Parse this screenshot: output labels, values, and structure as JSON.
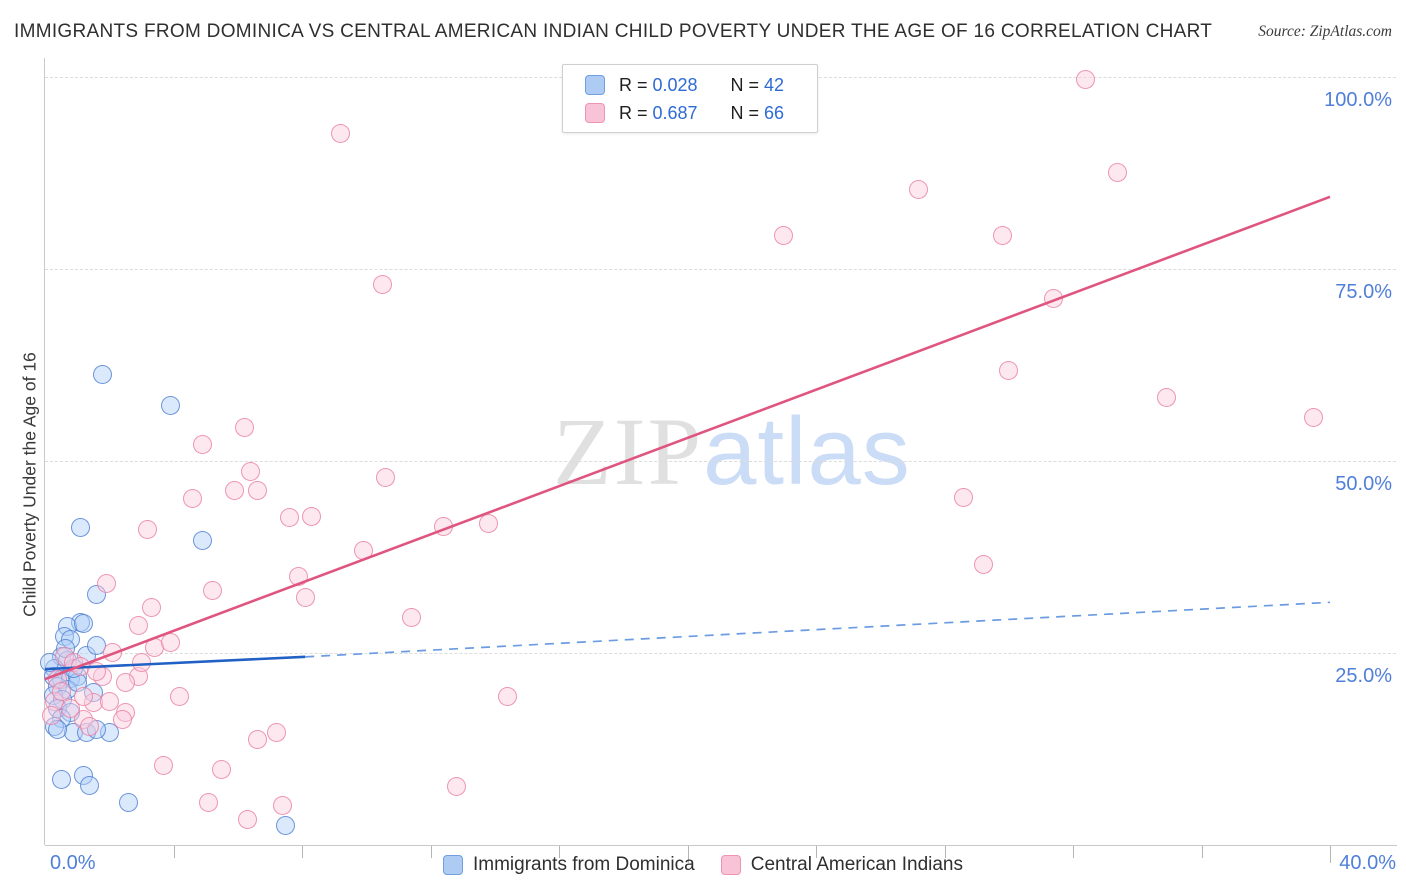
{
  "header": {
    "title": "IMMIGRANTS FROM DOMINICA VS CENTRAL AMERICAN INDIAN CHILD POVERTY UNDER THE AGE OF 16 CORRELATION CHART",
    "source": "Source: ZipAtlas.com"
  },
  "y_axis": {
    "title": "Child Poverty Under the Age of 16"
  },
  "x_axis": {
    "min_label": "0.0%",
    "max_label": "40.0%"
  },
  "watermark": {
    "part1": "ZIP",
    "part2": "atlas"
  },
  "legend_box": {
    "rows": [
      {
        "series": "Immigrants from Dominica",
        "r_label": "R = ",
        "r_value": "0.028",
        "n_label": "N = ",
        "n_value": "42",
        "color": "blue"
      },
      {
        "series": "Central American Indians",
        "r_label": "R = ",
        "r_value": "0.687",
        "n_label": "N = ",
        "n_value": "66",
        "color": "pink"
      }
    ]
  },
  "bottom_legend": [
    {
      "label": "Immigrants from Dominica",
      "color": "blue"
    },
    {
      "label": "Central American Indians",
      "color": "pink"
    }
  ],
  "colors": {
    "blue_dot_fill": "#b0cff8",
    "blue_dot_stroke": "#4678cd",
    "pink_dot_fill": "#faccde",
    "pink_dot_stroke": "#e8789e",
    "blue_trend": "#2160c4",
    "blue_trend_dashed": "#6b9be0",
    "pink_trend": "#e0557f",
    "gridline": "#dcdcdc",
    "axis_tick_label": "#4f7fd9",
    "title_text": "#2f2f2f"
  },
  "chart_data": {
    "type": "scatter",
    "title": "Immigrants from Dominica vs Central American Indian Child Poverty under the age of 16",
    "xlabel": "Immigrants from Dominica (%)",
    "ylabel": "Child Poverty Under the Age of 16",
    "xlim": [
      0,
      40
    ],
    "ylim": [
      0,
      100
    ],
    "x_tick_step": 4,
    "grid": "horizontal-dashed",
    "legend_position": "top-center",
    "y_gridlines": [
      {
        "value": 100,
        "label": "100.0%"
      },
      {
        "value": 75,
        "label": "75.0%"
      },
      {
        "value": 50,
        "label": "50.0%"
      },
      {
        "value": 25,
        "label": "25.0%"
      }
    ],
    "series": [
      {
        "name": "Immigrants from Dominica",
        "color_key": "blue",
        "R": 0.028,
        "N": 42,
        "points": [
          [
            1.8,
            61.2
          ],
          [
            3.9,
            57.2
          ],
          [
            1.1,
            41.3
          ],
          [
            4.9,
            39.6
          ],
          [
            1.6,
            32.6
          ],
          [
            1.1,
            29.0
          ],
          [
            0.7,
            28.5
          ],
          [
            0.6,
            27.1
          ],
          [
            0.8,
            26.8
          ],
          [
            0.5,
            24.5
          ],
          [
            0.7,
            24.0
          ],
          [
            0.3,
            23.0
          ],
          [
            0.25,
            21.9
          ],
          [
            0.5,
            21.5
          ],
          [
            0.8,
            21.7
          ],
          [
            1.0,
            22.0
          ],
          [
            0.4,
            20.6
          ],
          [
            0.7,
            20.2
          ],
          [
            0.25,
            19.5
          ],
          [
            0.55,
            18.9
          ],
          [
            1.0,
            21.1
          ],
          [
            0.4,
            17.8
          ],
          [
            0.8,
            17.3
          ],
          [
            1.5,
            19.9
          ],
          [
            0.5,
            16.5
          ],
          [
            0.3,
            15.4
          ],
          [
            0.9,
            14.7
          ],
          [
            1.3,
            14.6
          ],
          [
            2.0,
            14.6
          ],
          [
            1.6,
            15.0
          ],
          [
            0.5,
            8.5
          ],
          [
            1.2,
            9.1
          ],
          [
            1.4,
            7.7
          ],
          [
            2.6,
            5.5
          ],
          [
            7.5,
            2.6
          ],
          [
            1.2,
            28.9
          ],
          [
            0.65,
            25.6
          ],
          [
            1.3,
            24.7
          ],
          [
            0.15,
            23.8
          ],
          [
            0.9,
            23.0
          ],
          [
            1.6,
            26.0
          ],
          [
            0.4,
            15.0
          ]
        ]
      },
      {
        "name": "Central American Indians",
        "color_key": "pink",
        "R": 0.687,
        "N": 66,
        "points": [
          [
            9.2,
            92.7
          ],
          [
            32.4,
            99.7
          ],
          [
            33.4,
            87.6
          ],
          [
            27.2,
            85.3
          ],
          [
            23.0,
            79.3
          ],
          [
            29.8,
            79.3
          ],
          [
            31.4,
            71.1
          ],
          [
            10.5,
            73.0
          ],
          [
            30.0,
            61.8
          ],
          [
            34.9,
            58.3
          ],
          [
            39.5,
            55.7
          ],
          [
            6.2,
            54.4
          ],
          [
            4.9,
            52.1
          ],
          [
            10.6,
            47.8
          ],
          [
            6.4,
            48.6
          ],
          [
            5.9,
            46.1
          ],
          [
            6.6,
            46.1
          ],
          [
            4.6,
            45.1
          ],
          [
            28.6,
            45.2
          ],
          [
            7.6,
            42.6
          ],
          [
            8.3,
            42.8
          ],
          [
            12.4,
            41.5
          ],
          [
            13.8,
            41.9
          ],
          [
            3.2,
            41.1
          ],
          [
            29.2,
            36.5
          ],
          [
            9.9,
            38.3
          ],
          [
            7.9,
            35.0
          ],
          [
            1.9,
            34.0
          ],
          [
            5.2,
            33.1
          ],
          [
            8.1,
            32.2
          ],
          [
            11.4,
            29.6
          ],
          [
            3.3,
            30.9
          ],
          [
            2.9,
            28.6
          ],
          [
            3.4,
            25.7
          ],
          [
            2.1,
            25.1
          ],
          [
            1.8,
            21.9
          ],
          [
            2.9,
            21.9
          ],
          [
            2.5,
            21.1
          ],
          [
            1.5,
            18.5
          ],
          [
            2.5,
            17.3
          ],
          [
            1.2,
            16.3
          ],
          [
            1.4,
            15.4
          ],
          [
            2.4,
            16.3
          ],
          [
            4.2,
            19.3
          ],
          [
            14.4,
            19.3
          ],
          [
            12.8,
            7.6
          ],
          [
            3.7,
            10.4
          ],
          [
            5.5,
            9.8
          ],
          [
            5.1,
            5.5
          ],
          [
            6.3,
            3.3
          ],
          [
            7.4,
            5.1
          ],
          [
            6.6,
            13.7
          ],
          [
            7.2,
            14.7
          ],
          [
            0.6,
            24.5
          ],
          [
            0.9,
            23.8
          ],
          [
            0.4,
            21.5
          ],
          [
            1.1,
            23.2
          ],
          [
            0.3,
            18.7
          ],
          [
            0.8,
            17.8
          ],
          [
            0.5,
            20.0
          ],
          [
            1.6,
            22.6
          ],
          [
            0.2,
            16.8
          ],
          [
            1.2,
            19.3
          ],
          [
            2.0,
            18.7
          ],
          [
            3.0,
            23.8
          ],
          [
            3.9,
            26.4
          ]
        ]
      }
    ],
    "trend_lines": [
      {
        "series": "Immigrants from Dominica",
        "style": "solid",
        "x1": 0,
        "y1": 22.9,
        "x2": 8.1,
        "y2": 24.5
      },
      {
        "series": "Immigrants from Dominica",
        "style": "dashed",
        "x1": 8.1,
        "y1": 24.5,
        "x2": 40,
        "y2": 31.6
      },
      {
        "series": "Central American Indians",
        "style": "solid",
        "x1": 0,
        "y1": 21.6,
        "x2": 40,
        "y2": 84.4
      }
    ]
  }
}
